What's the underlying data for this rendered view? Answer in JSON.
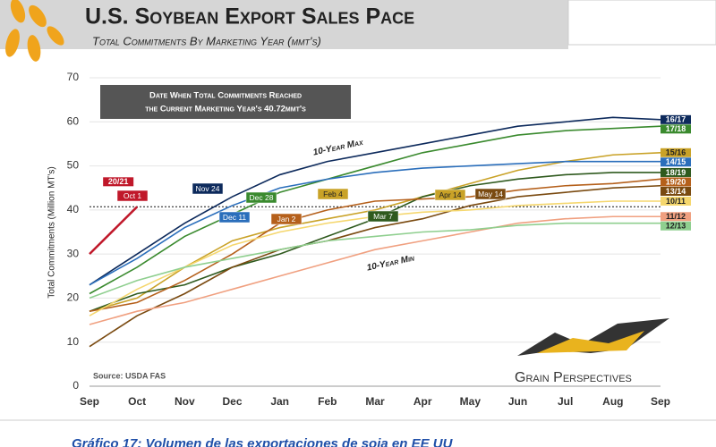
{
  "chart_data": {
    "type": "line",
    "title": "U.S. Soybean Export Sales Pace",
    "subtitle": "Total Commitments By Marketing Year (mmt's)",
    "y_label": "Total Commitments (Million MT's)",
    "source": "Source: USDA FAS",
    "logo": "Grain Perspectives",
    "caption": "Gráfico 17: Volumen de las exportaciones de soja en EE UU",
    "note_lines": [
      "Date When Total Commitments Reached",
      "the Current Marketing Year's 40.72mmt's"
    ],
    "max_label": "10-Year Max",
    "min_label": "10-Year Min",
    "reference": 40.72,
    "categories": [
      "Sep",
      "Oct",
      "Nov",
      "Dec",
      "Jan",
      "Feb",
      "Mar",
      "Apr",
      "May",
      "Jun",
      "Jul",
      "Aug",
      "Sep"
    ],
    "ylim": [
      0,
      70
    ],
    "yticks": [
      0,
      10,
      20,
      30,
      40,
      50,
      60,
      70
    ],
    "series": [
      {
        "name": "16/17",
        "color": "#0d2a5c",
        "values": [
          23,
          30,
          37,
          43,
          48,
          51,
          53,
          55,
          57,
          59,
          60,
          61,
          60.5
        ]
      },
      {
        "name": "17/18",
        "color": "#3a8a2e",
        "values": [
          21,
          27,
          34,
          39,
          44,
          47,
          50,
          53,
          55,
          57,
          58,
          58.5,
          59
        ]
      },
      {
        "name": "15/16",
        "color": "#c9a227",
        "values": [
          17,
          20,
          27,
          33,
          36,
          38,
          40,
          43,
          46,
          49,
          51,
          52.5,
          53
        ]
      },
      {
        "name": "14/15",
        "color": "#2a6ebb",
        "values": [
          23,
          29,
          36,
          41,
          45,
          47,
          48.5,
          49.5,
          50,
          50.5,
          51,
          51,
          51
        ]
      },
      {
        "name": "18/19",
        "color": "#2f5a1e",
        "values": [
          17,
          21,
          23,
          27,
          30,
          34,
          38,
          43,
          45.5,
          47,
          48,
          48.5,
          48.5
        ]
      },
      {
        "name": "19/20",
        "color": "#b5601b",
        "values": [
          17,
          19,
          24,
          30,
          37,
          40,
          42,
          42.5,
          43,
          44.5,
          45.5,
          46,
          47
        ]
      },
      {
        "name": "13/14",
        "color": "#7a4a10",
        "values": [
          9,
          16,
          21,
          27,
          31,
          33,
          36,
          38,
          41,
          43,
          44,
          45,
          45.5
        ]
      },
      {
        "name": "10/11",
        "color": "#f5d76e",
        "values": [
          16,
          22,
          27,
          32,
          35,
          37,
          38.5,
          39.5,
          40,
          41,
          41.5,
          42,
          42
        ]
      },
      {
        "name": "11/12",
        "color": "#f0a080",
        "values": [
          14,
          17,
          19,
          22,
          25,
          28,
          31,
          33,
          35,
          37,
          38,
          38.5,
          38.5
        ]
      },
      {
        "name": "12/13",
        "color": "#8fcf8f",
        "values": [
          20,
          24,
          27,
          29,
          31,
          33,
          34,
          35,
          35.5,
          36.5,
          37,
          37,
          37
        ]
      },
      {
        "name": "20/21",
        "color": "#c0182a",
        "values": [
          30,
          40.72,
          null,
          null,
          null,
          null,
          null,
          null,
          null,
          null,
          null,
          null,
          null
        ]
      }
    ],
    "callouts": [
      {
        "text": "Oct 1",
        "color": "#c0182a"
      },
      {
        "text": "Nov 24",
        "color": "#0d2a5c"
      },
      {
        "text": "Dec 11",
        "color": "#2a6ebb"
      },
      {
        "text": "Dec 28",
        "color": "#3a8a2e"
      },
      {
        "text": "Jan 2",
        "color": "#b5601b"
      },
      {
        "text": "Feb 4",
        "color": "#c9a227"
      },
      {
        "text": "Mar 7",
        "color": "#2f5a1e"
      },
      {
        "text": "Apr 14",
        "color": "#c9a227"
      },
      {
        "text": "May 14",
        "color": "#7a4a10"
      }
    ]
  }
}
